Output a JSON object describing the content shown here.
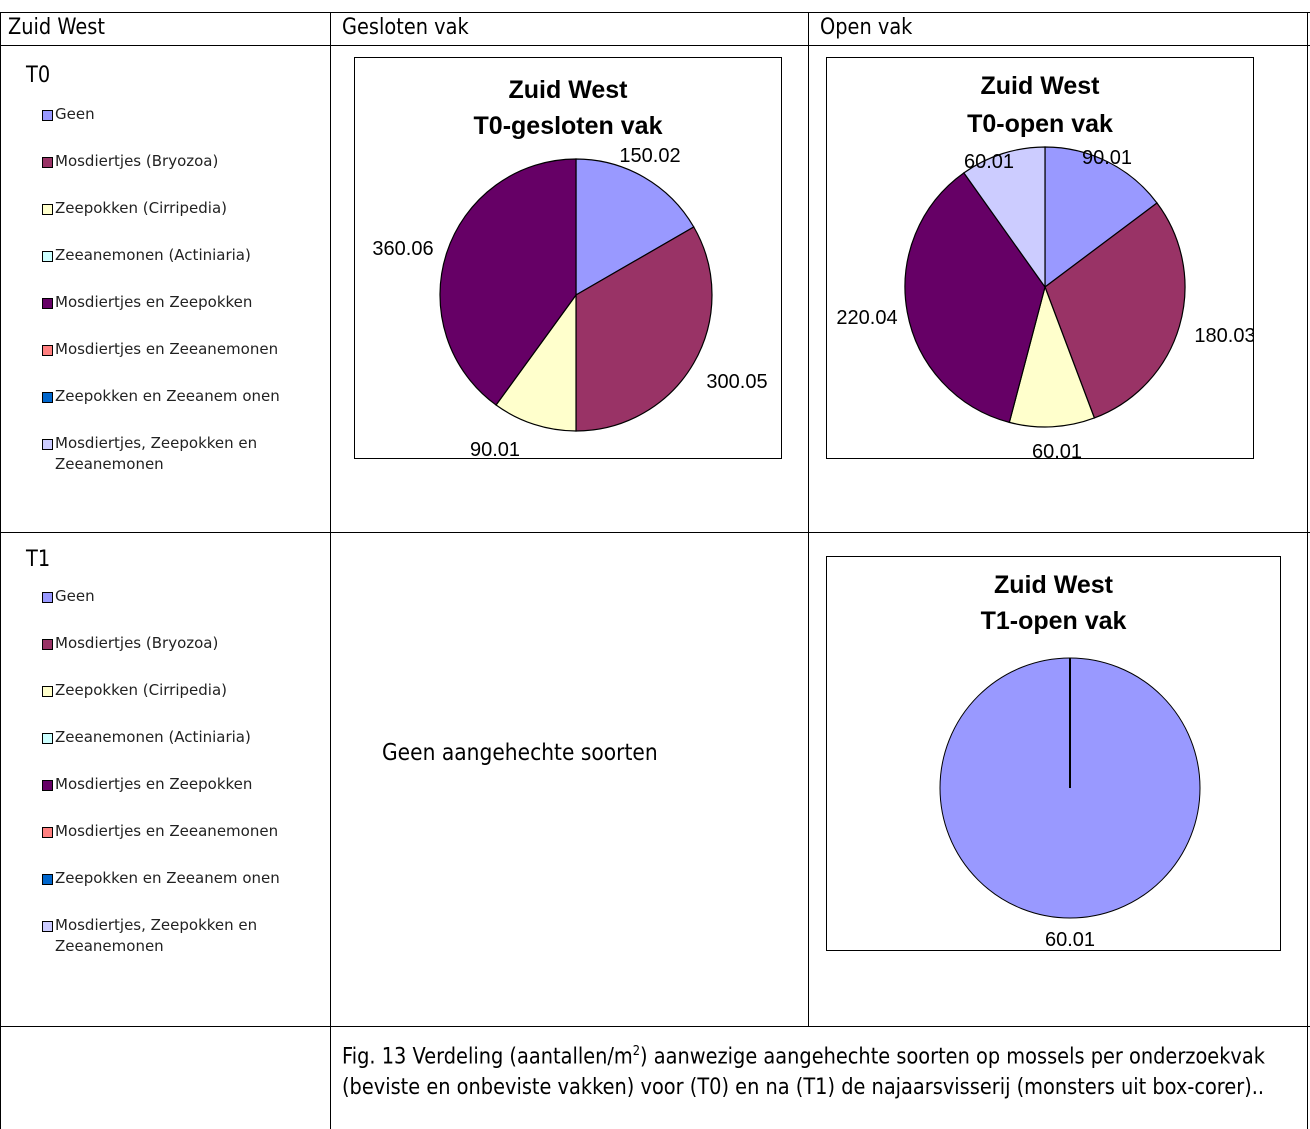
{
  "headers": {
    "col1": "Zuid West",
    "col2": "Gesloten vak",
    "col3": "Open vak"
  },
  "rows": {
    "t0": "T0",
    "t1": "T1"
  },
  "legend": [
    {
      "label": "Geen",
      "color": "#9999ff"
    },
    {
      "label": "Mosdiertjes (Bryozoa)",
      "color": "#993366"
    },
    {
      "label": "Zeepokken (Cirripedia)",
      "color": "#ffffcc"
    },
    {
      "label": "Zeeanemonen (Actiniaria)",
      "color": "#ccffff"
    },
    {
      "label": "Mosdiertjes en Zeepokken",
      "color": "#660066"
    },
    {
      "label": "Mosdiertjes en Zeeanemonen",
      "color": "#ff8080"
    },
    {
      "label": "Zeepokken en Zeeanem onen",
      "color": "#0066cc"
    },
    {
      "label": "Mosdiertjes, Zeepokken en Zeeanemonen",
      "color": "#ccccff"
    }
  ],
  "no_species_note": "Geen aangehechte soorten",
  "caption": {
    "before_sup": "Fig. 13 Verdeling (aantallen/m",
    "sup": "2",
    "after_sup": ") aanwezige aangehechte soorten op mossels per onderzoekvak (beviste en onbeviste vakken) voor (T0) en na (T1) de najaarsvisserij (monsters uit box-corer).."
  },
  "chart_data": [
    {
      "type": "pie",
      "title": [
        "Zuid West",
        "T0-gesloten vak"
      ],
      "slices": [
        {
          "category": "Geen",
          "value": 150.02,
          "label": "150.02",
          "color": "#9999ff"
        },
        {
          "category": "Mosdiertjes (Bryozoa)",
          "value": 300.05,
          "label": "300.05",
          "color": "#993366"
        },
        {
          "category": "Zeepokken (Cirripedia)",
          "value": 90.01,
          "label": "90.01",
          "color": "#ffffcc"
        },
        {
          "category": "Mosdiertjes en Zeepokken",
          "value": 360.06,
          "label": "360.06",
          "color": "#660066"
        }
      ]
    },
    {
      "type": "pie",
      "title": [
        "Zuid West",
        "T0-open vak"
      ],
      "slices": [
        {
          "category": "Geen",
          "value": 90.01,
          "label": "90.01",
          "color": "#9999ff"
        },
        {
          "category": "Mosdiertjes (Bryozoa)",
          "value": 180.03,
          "label": "180.03",
          "color": "#993366"
        },
        {
          "category": "Zeepokken (Cirripedia)",
          "value": 60.01,
          "label": "60.01",
          "color": "#ffffcc"
        },
        {
          "category": "Mosdiertjes en Zeepokken",
          "value": 220.04,
          "label": "220.04",
          "color": "#660066"
        },
        {
          "category": "Mosdiertjes, Zeepokken en Zeeanemonen",
          "value": 60.01,
          "label": "60.01",
          "color": "#ccccff"
        }
      ]
    },
    {
      "type": "pie",
      "title": [
        "Zuid West",
        "T1-open vak"
      ],
      "slices": [
        {
          "category": "Geen",
          "value": 60.01,
          "label": "60.01",
          "color": "#9999ff"
        }
      ]
    }
  ]
}
